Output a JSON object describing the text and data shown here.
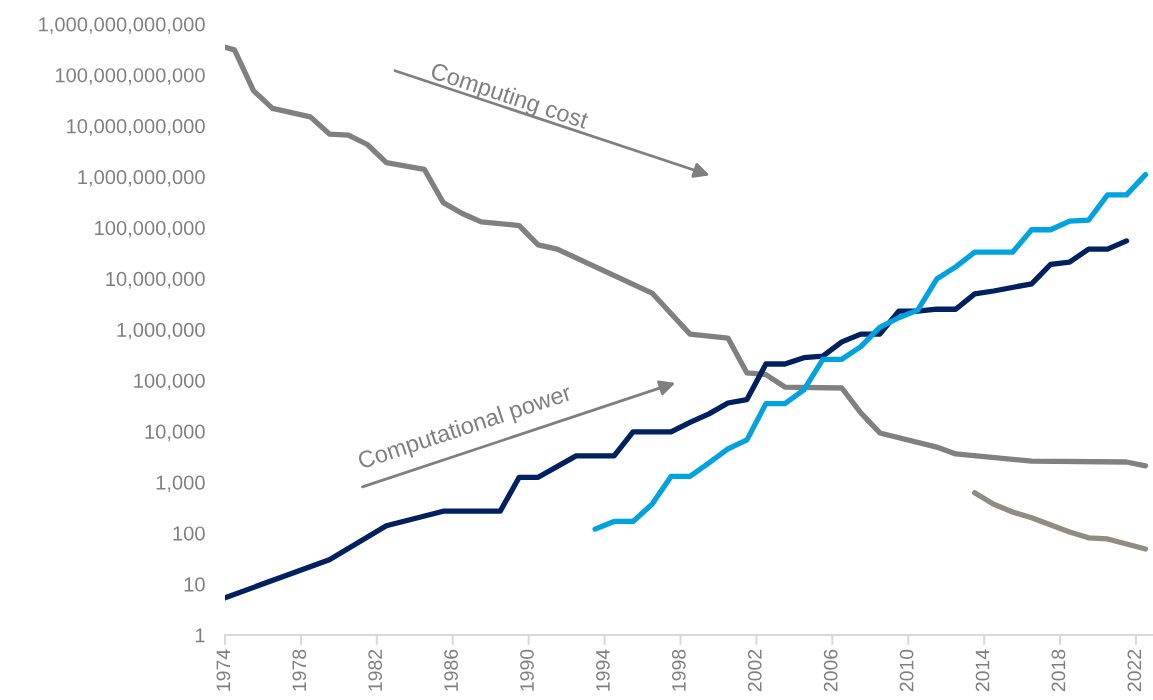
{
  "chart_data": {
    "type": "line",
    "log": "y",
    "grid": false,
    "xlim": [
      1974,
      2023
    ],
    "xticks": [
      1974,
      1978,
      1982,
      1986,
      1990,
      1994,
      1998,
      2002,
      2006,
      2010,
      2014,
      2018,
      2022
    ],
    "ylim": [
      1,
      1000000000000
    ],
    "yticks": [
      {
        "value": 1,
        "label": "1"
      },
      {
        "value": 10,
        "label": "10"
      },
      {
        "value": 100,
        "label": "100"
      },
      {
        "value": 1000,
        "label": "1,000"
      },
      {
        "value": 10000,
        "label": "10,000"
      },
      {
        "value": 100000,
        "label": "100,000"
      },
      {
        "value": 1000000,
        "label": "1,000,000"
      },
      {
        "value": 10000000,
        "label": "10,000,000"
      },
      {
        "value": 100000000,
        "label": "100,000,000"
      },
      {
        "value": 1000000000,
        "label": "1,000,000,000"
      },
      {
        "value": 10000000000,
        "label": "10,000,000,000"
      },
      {
        "value": 100000000000,
        "label": "100,000,000,000"
      },
      {
        "value": 1000000000000,
        "label": "1,000,000,000,000"
      }
    ],
    "annotations": [
      "Computing cost",
      "Computational power"
    ],
    "series": [
      {
        "color": "#808080",
        "x": [
          1974.0,
          1974.5,
          1975.5,
          1976.5,
          1978.5,
          1979.5,
          1980.5,
          1981.5,
          1982.5,
          1984.5,
          1985.5,
          1986.5,
          1987.5,
          1989.5,
          1990.5,
          1991.5,
          1996.5,
          1998.5,
          2000.5,
          2001.5,
          2002.5,
          2003.5,
          2006.5,
          2007.5,
          2008.5,
          2011.5,
          2012.5,
          2016.5,
          2021.5,
          2022.5
        ],
        "values": [
          350000000000,
          310000000000,
          49000000000,
          22000000000,
          15000000000,
          6900000000,
          6600000000,
          4300000000,
          1900000000,
          1400000000,
          310000000,
          190000000,
          130000000,
          110000000,
          46000000,
          38000000,
          5200000,
          810000,
          680000,
          140000,
          130000,
          74000,
          71000,
          23000,
          9300,
          4900,
          3600,
          2600,
          2500,
          2100
        ]
      },
      {
        "color": "#8f8c80",
        "x": [
          2013.5,
          2014.5,
          2015.5,
          2016.5,
          2018.5,
          2019.5,
          2020.5,
          2022.5
        ],
        "values": [
          620,
          370,
          260,
          200,
          105,
          81,
          77,
          49
        ]
      },
      {
        "color": "#002060",
        "x": [
          1974.0,
          1979.5,
          1982.5,
          1985.5,
          1988.5,
          1989.5,
          1990.5,
          1992.5,
          1994.5,
          1995.5,
          1997.5,
          1998.5,
          1999.5,
          2000.5,
          2001.5,
          2002.5,
          2003.5,
          2004.5,
          2005.5,
          2006.5,
          2007.5,
          2008.5,
          2009.5,
          2010.5,
          2011.5,
          2012.5,
          2013.5,
          2014.5,
          2016.5,
          2017.5,
          2018.5,
          2019.5,
          2020.5,
          2021.5
        ],
        "values": [
          5.4,
          30,
          140,
          270,
          270,
          1250,
          1250,
          3300,
          3300,
          9800,
          9800,
          15000,
          22000,
          36000,
          42000,
          210000,
          210000,
          280000,
          300000,
          570000,
          810000,
          810000,
          2300000,
          2300000,
          2500000,
          2500000,
          5000000,
          5700000,
          7900000,
          19000000,
          21000000,
          38000000,
          38000000,
          55000000
        ]
      },
      {
        "color": "#00a3e0",
        "x": [
          1993.5,
          1994.5,
          1995.5,
          1996.5,
          1997.5,
          1998.5,
          1999.5,
          2000.5,
          2001.5,
          2002.5,
          2003.5,
          2004.5,
          2005.5,
          2006.5,
          2007.5,
          2008.5,
          2009.5,
          2010.5,
          2011.5,
          2012.5,
          2013.5,
          2015.5,
          2016.5,
          2017.5,
          2018.5,
          2019.5,
          2020.5,
          2021.5,
          2022.5
        ],
        "values": [
          120,
          170,
          170,
          370,
          1300,
          1300,
          2400,
          4500,
          6800,
          35000,
          35000,
          65000,
          260000,
          260000,
          460000,
          1100000,
          1700000,
          2400000,
          9800000,
          17000000,
          33000000,
          33000000,
          91000000,
          91000000,
          135000000,
          140000000,
          440000000,
          440000000,
          1100000000
        ]
      }
    ]
  }
}
